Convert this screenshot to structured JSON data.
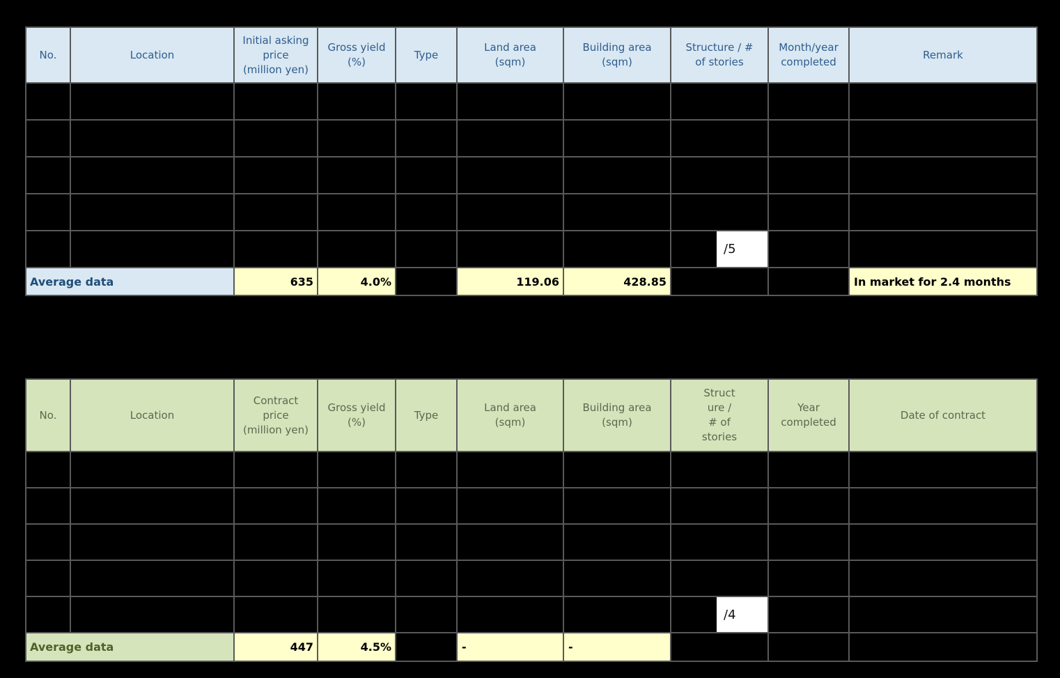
{
  "colors": {
    "background": "#000000",
    "gridline": "#595959",
    "table1_header_bg": "#d9e8f2",
    "table1_header_text": "#2f5c8f",
    "table1_average_text": "#1f4e79",
    "table2_header_bg": "#d6e4bc",
    "table2_header_text": "#5a694d",
    "table2_average_text": "#4f6228",
    "highlight_yellow": "#ffffcc",
    "edit_box_bg": "#ffffff"
  },
  "table1": {
    "headers": [
      "No.",
      "Location",
      "Initial asking\nprice\n(million yen)",
      "Gross yield\n(%)",
      "Type",
      "Land area\n(sqm)",
      "Building area\n(sqm)",
      "Structure / #\nof stories",
      "Month/year\ncompleted",
      "Remark"
    ],
    "hidden_rows": 5,
    "row5_structure_note": "/5",
    "average": {
      "label": "Average data",
      "initial_asking_price": "635",
      "gross_yield": "4.0%",
      "land_area": "119.06",
      "building_area": "428.85",
      "remark": "In market for 2.4 months"
    }
  },
  "table2": {
    "headers": [
      "No.",
      "Location",
      "Contract\nprice\n(million yen)",
      "Gross yield\n(%)",
      "Type",
      "Land area\n(sqm)",
      "Building area\n(sqm)",
      "Struct\nure /\n# of\nstories",
      "Year\ncompleted",
      "Date of contract"
    ],
    "hidden_rows": 5,
    "row5_structure_note": "/4",
    "average": {
      "label": "Average data",
      "contract_price": "447",
      "gross_yield": "4.5%",
      "land_area": "-",
      "building_area": "-"
    }
  }
}
